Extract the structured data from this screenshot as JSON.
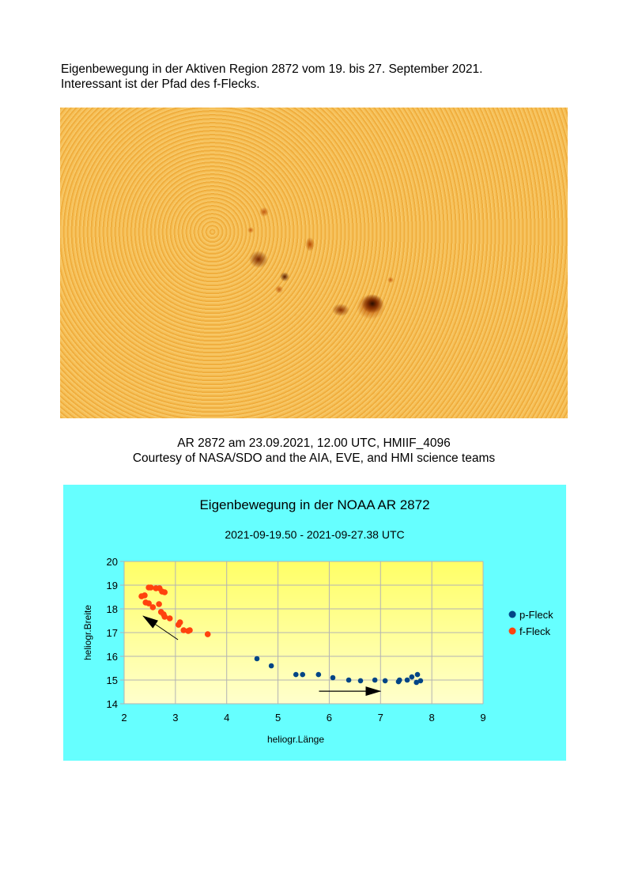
{
  "intro": {
    "line1": "Eigenbewegung in der Aktiven Region 2872 vom 19. bis 27. September 2021.",
    "line2": "Interessant ist der Pfad des f-Flecks."
  },
  "image_caption": {
    "line1": "AR 2872 am 23.09.2021, 12.00 UTC, HMIIF_4096",
    "line2": "Courtesy of NASA/SDO and the AIA, EVE, and HMI science teams"
  },
  "chart_data": {
    "type": "scatter",
    "title": "Eigenbewegung in der NOAA AR 2872",
    "subtitle": "2021-09-19.50 - 2021-09-27.38 UTC",
    "xlabel": "heliogr.Länge",
    "ylabel": "heliogr.Breite",
    "xlim": [
      2,
      9
    ],
    "ylim": [
      14,
      20
    ],
    "xticks": [
      "2",
      "3",
      "4",
      "5",
      "6",
      "7",
      "8",
      "9"
    ],
    "yticks": [
      "14",
      "15",
      "16",
      "17",
      "18",
      "19",
      "20"
    ],
    "grid": true,
    "legend_position": "right",
    "background_color": "#66ffff",
    "plot_gradient": [
      "#ffff66",
      "#ffffcc"
    ],
    "series": [
      {
        "name": "p-Fleck",
        "color": "#004586",
        "points": [
          [
            4.59,
            15.9
          ],
          [
            4.87,
            15.6
          ],
          [
            5.35,
            15.23
          ],
          [
            5.48,
            15.23
          ],
          [
            5.79,
            15.23
          ],
          [
            6.07,
            15.1
          ],
          [
            6.38,
            15.0
          ],
          [
            6.61,
            14.97
          ],
          [
            6.89,
            15.0
          ],
          [
            7.09,
            14.97
          ],
          [
            7.35,
            14.93
          ],
          [
            7.37,
            15.0
          ],
          [
            7.52,
            15.0
          ],
          [
            7.61,
            15.13
          ],
          [
            7.7,
            14.9
          ],
          [
            7.72,
            15.23
          ],
          [
            7.78,
            14.97
          ]
        ]
      },
      {
        "name": "f-Fleck",
        "color": "#ff420e",
        "points": [
          [
            2.48,
            18.9
          ],
          [
            2.52,
            18.9
          ],
          [
            2.62,
            18.87
          ],
          [
            2.69,
            18.87
          ],
          [
            2.74,
            18.73
          ],
          [
            2.79,
            18.7
          ],
          [
            2.4,
            18.57
          ],
          [
            2.34,
            18.53
          ],
          [
            2.42,
            18.27
          ],
          [
            2.48,
            18.23
          ],
          [
            2.56,
            18.07
          ],
          [
            2.68,
            18.2
          ],
          [
            2.72,
            17.87
          ],
          [
            2.77,
            17.77
          ],
          [
            2.79,
            17.67
          ],
          [
            2.89,
            17.6
          ],
          [
            3.09,
            17.43
          ],
          [
            3.06,
            17.33
          ],
          [
            3.16,
            17.1
          ],
          [
            3.25,
            17.07
          ],
          [
            3.28,
            17.1
          ],
          [
            3.63,
            16.93
          ]
        ]
      }
    ],
    "annotations": [
      {
        "type": "arrow",
        "from": [
          3.05,
          16.7
        ],
        "to": [
          2.37,
          17.7
        ]
      },
      {
        "type": "arrow",
        "from": [
          5.8,
          14.53
        ],
        "to": [
          7.0,
          14.53
        ]
      }
    ]
  }
}
